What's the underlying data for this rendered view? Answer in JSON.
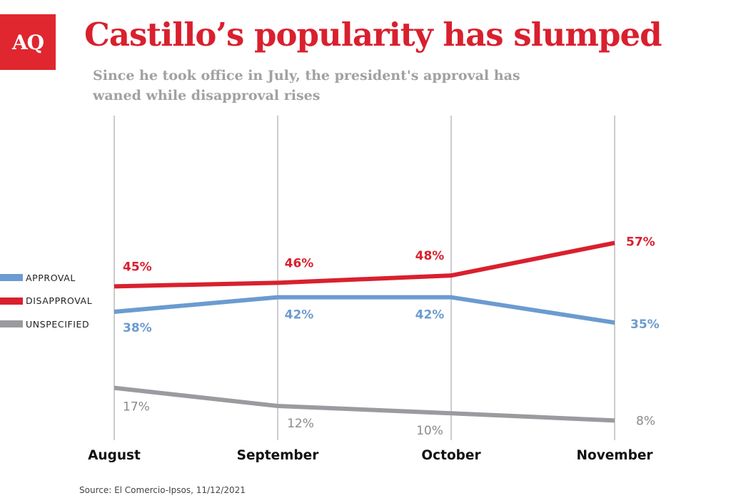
{
  "header": {
    "logo": "AQ",
    "title": "Castillo’s popularity has slumped",
    "subtitle": "Since he took office in July, the president's approval has waned while disapproval rises"
  },
  "chart_data": {
    "type": "line",
    "x": [
      "August",
      "September",
      "October",
      "November"
    ],
    "series": [
      {
        "name": "APPROVAL",
        "values": [
          38,
          42,
          42,
          35
        ],
        "labels": [
          "38%",
          "42%",
          "42%",
          "35%"
        ],
        "color": "#6b9bd0"
      },
      {
        "name": "DISAPPROVAL",
        "values": [
          45,
          46,
          48,
          57
        ],
        "labels": [
          "45%",
          "46%",
          "48%",
          "57%"
        ],
        "color": "#d9202e"
      },
      {
        "name": "UNSPECIFIED",
        "values": [
          17,
          12,
          10,
          8
        ],
        "labels": [
          "17%",
          "12%",
          "10%",
          "8%"
        ],
        "color": "#9b9b9f"
      }
    ],
    "legend_position": "left",
    "grid": "vertical",
    "title": "Castillo’s popularity has slumped",
    "xlabel": "",
    "ylabel": ""
  },
  "source": "Source: El Comercio-Ipsos, 11/12/2021"
}
